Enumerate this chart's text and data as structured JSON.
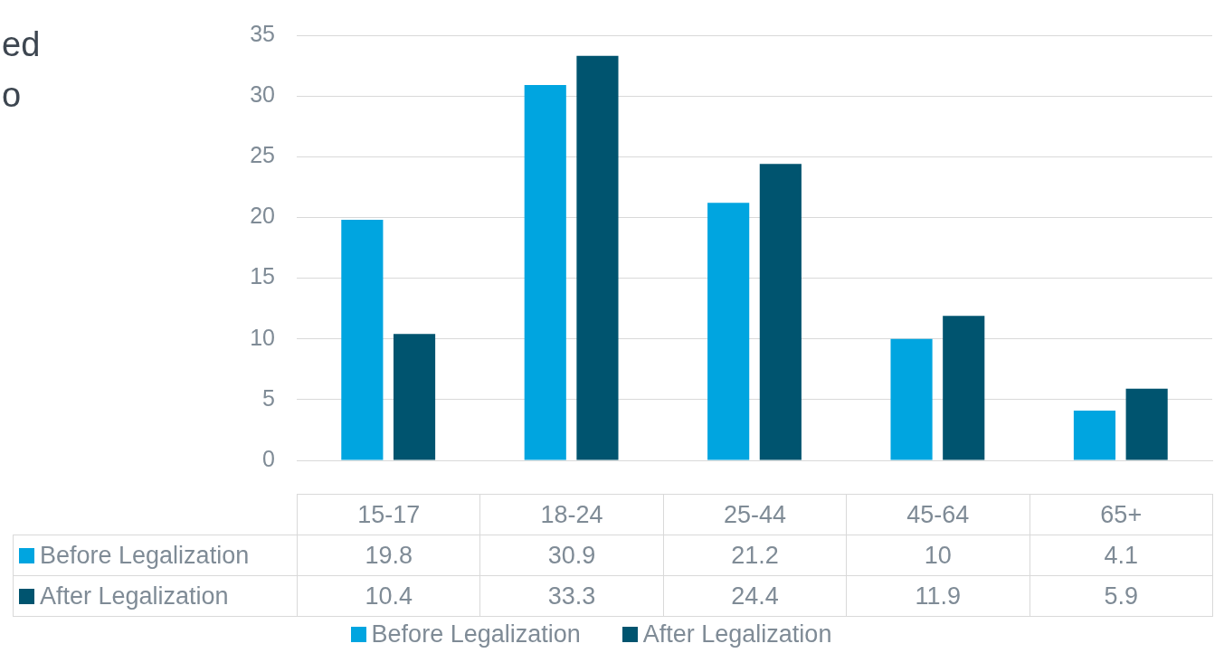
{
  "chart_data": {
    "type": "bar",
    "annotations": [
      "ed",
      "o"
    ],
    "categories": [
      "15-17",
      "18-24",
      "25-44",
      "45-64",
      "65+"
    ],
    "series": [
      {
        "name": "Before Legalization",
        "color": "#00a5e0",
        "values": [
          19.8,
          30.9,
          21.2,
          10,
          4.1
        ]
      },
      {
        "name": "After Legalization",
        "color": "#00546f",
        "values": [
          10.4,
          33.3,
          24.4,
          11.9,
          5.9
        ]
      }
    ],
    "ylim": [
      0,
      35
    ],
    "yticks": [
      0,
      5,
      10,
      15,
      20,
      25,
      30,
      35
    ],
    "grid": "y",
    "legend": "bottom",
    "data_labels": true
  }
}
